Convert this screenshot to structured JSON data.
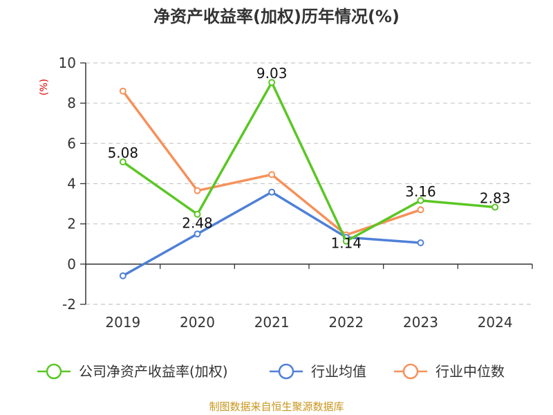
{
  "chart_data": {
    "type": "line",
    "title": "净资产收益率(加权)历年情况(%)",
    "ylabel": "(%)",
    "categories": [
      "2019",
      "2020",
      "2021",
      "2022",
      "2023",
      "2024"
    ],
    "ylim": [
      -2,
      10
    ],
    "yticks": [
      "-2",
      "0",
      "2",
      "4",
      "6",
      "8",
      "10"
    ],
    "grid": true,
    "legend_position": "bottom",
    "series": [
      {
        "name": "公司净资产收益率(加权)",
        "color": "#5ac724",
        "values": [
          5.08,
          2.48,
          9.03,
          1.14,
          3.16,
          2.83
        ],
        "labels": [
          "5.08",
          "2.48",
          "9.03",
          "1.14",
          "3.16",
          "2.83"
        ]
      },
      {
        "name": "行业均值",
        "color": "#4f80d8",
        "values": [
          -0.58,
          1.5,
          3.58,
          1.33,
          1.06,
          null
        ]
      },
      {
        "name": "行业中位数",
        "color": "#f6915a",
        "values": [
          8.6,
          3.65,
          4.45,
          1.45,
          2.7,
          null
        ]
      }
    ],
    "source": "制图数据来自恒生聚源数据库"
  }
}
